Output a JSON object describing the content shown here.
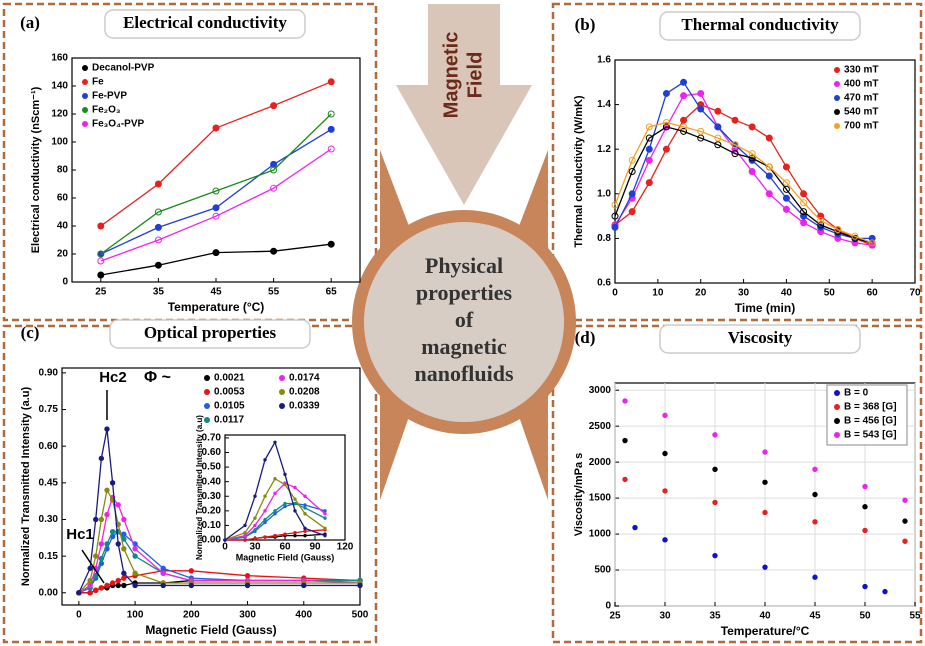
{
  "arrow": {
    "lines": [
      "Magnetic",
      "Field"
    ]
  },
  "center": {
    "lines": [
      "Physical",
      "properties",
      "of",
      "magnetic",
      "nanofluids"
    ]
  },
  "chart_data": [
    {
      "type": "line",
      "panel": "(a)",
      "title": "Electrical conductivity",
      "xlabel": "Temperature (°C)",
      "ylabel": "Electrical conductivity (nScm⁻¹)",
      "x": [
        25,
        35,
        45,
        55,
        65
      ],
      "xlim": [
        20,
        70
      ],
      "xticks": [
        25,
        35,
        45,
        55,
        65
      ],
      "ylim": [
        0,
        160
      ],
      "yticks": [
        0,
        20,
        40,
        60,
        80,
        100,
        120,
        140,
        160
      ],
      "legend": "upper left",
      "grid": false,
      "series": [
        {
          "name": "Decanol-PVP",
          "color": "#000000",
          "values": [
            5,
            12,
            21,
            22,
            27
          ]
        },
        {
          "name": "Fe",
          "color": "#e8211c",
          "values": [
            40,
            70,
            110,
            126,
            143
          ]
        },
        {
          "name": "Fe-PVP",
          "color": "#1f3fd8",
          "values": [
            20,
            39,
            53,
            84,
            109
          ]
        },
        {
          "name": "Fe₂O₃",
          "color": "#1a8a1a",
          "values": [
            20,
            50,
            65,
            80,
            120
          ]
        },
        {
          "name": "Fe₃O₄-PVP",
          "color": "#ee22ee",
          "values": [
            15,
            30,
            47,
            67,
            95
          ]
        }
      ]
    },
    {
      "type": "line",
      "panel": "(b)",
      "title": "Thermal conductivity",
      "xlabel": "Time (min)",
      "ylabel": "Thermal conductivity (W/mK)",
      "x": [
        0,
        4,
        8,
        12,
        16,
        20,
        24,
        28,
        32,
        36,
        40,
        44,
        48,
        52,
        56,
        60
      ],
      "xlim": [
        0,
        70
      ],
      "xticks": [
        0,
        10,
        20,
        30,
        40,
        50,
        60,
        70
      ],
      "ylim": [
        0.6,
        1.6
      ],
      "yticks": [
        0.6,
        0.8,
        {
          "value": 1,
          "label": "1.0"
        },
        1.2,
        1.4,
        1.6
      ],
      "legend": "upper right",
      "grid": false,
      "series": [
        {
          "name": "330 mT",
          "color": "#e8211c",
          "values": [
            0.86,
            0.92,
            1.05,
            1.2,
            1.33,
            1.4,
            1.37,
            1.33,
            1.3,
            1.25,
            1.12,
            1.0,
            0.9,
            0.84,
            0.8,
            0.77
          ]
        },
        {
          "name": "400 mT",
          "color": "#ee22ee",
          "values": [
            0.86,
            0.98,
            1.15,
            1.3,
            1.44,
            1.45,
            1.3,
            1.2,
            1.1,
            1.0,
            0.93,
            0.87,
            0.83,
            0.8,
            0.78,
            0.77
          ]
        },
        {
          "name": "470 mT",
          "color": "#1f3fd8",
          "values": [
            0.85,
            1.0,
            1.2,
            1.45,
            1.5,
            1.38,
            1.3,
            1.22,
            1.15,
            1.08,
            0.98,
            0.9,
            0.85,
            0.82,
            0.8,
            0.8
          ]
        },
        {
          "name": "540 mT",
          "color": "#000000",
          "values": [
            0.9,
            1.1,
            1.25,
            1.3,
            1.28,
            1.25,
            1.22,
            1.18,
            1.16,
            1.12,
            1.02,
            0.92,
            0.86,
            0.83,
            0.8,
            0.78
          ]
        },
        {
          "name": "700 mT",
          "color": "#f5a020",
          "values": [
            0.95,
            1.15,
            1.3,
            1.32,
            1.3,
            1.28,
            1.25,
            1.22,
            1.18,
            1.12,
            1.05,
            0.96,
            0.88,
            0.84,
            0.81,
            0.78
          ]
        }
      ]
    },
    {
      "type": "scatter",
      "panel": "(c)",
      "title": "Optical properties",
      "xlabel": "Magnetic Field (Gauss)",
      "ylabel": "Normalized Transmitted Intensity (a.u)",
      "x": [
        0,
        20,
        30,
        40,
        50,
        60,
        70,
        80,
        100,
        150,
        200,
        300,
        400,
        500
      ],
      "xlim": [
        -30,
        500
      ],
      "xticks": [
        0,
        100,
        200,
        300,
        400,
        500
      ],
      "ylim": [
        -0.05,
        0.92
      ],
      "yticks": [
        {
          "value": 0,
          "label": "0.00"
        },
        0.15,
        {
          "value": 0.3,
          "label": "0.30"
        },
        0.45,
        {
          "value": 0.6,
          "label": "0.60"
        },
        0.75,
        {
          "value": 0.9,
          "label": "0.90"
        }
      ],
      "legend": "upper right",
      "legend_title": "Φ ~",
      "grid": false,
      "annotations": [
        "Hc2",
        "Hc1"
      ],
      "series": [
        {
          "name": "0.0021",
          "color": "#000000",
          "values": [
            0,
            0,
            0.01,
            0.02,
            0.02,
            0.03,
            0.03,
            0.03,
            0.04,
            0.04,
            0.05,
            0.05,
            0.05,
            0.05
          ]
        },
        {
          "name": "0.0053",
          "color": "#ee1111",
          "values": [
            0,
            0,
            0.01,
            0.02,
            0.03,
            0.04,
            0.05,
            0.06,
            0.07,
            0.09,
            0.09,
            0.07,
            0.06,
            0.05
          ]
        },
        {
          "name": "0.0105",
          "color": "#1f5fe8",
          "values": [
            0,
            0.02,
            0.06,
            0.12,
            0.18,
            0.23,
            0.25,
            0.24,
            0.2,
            0.1,
            0.06,
            0.05,
            0.05,
            0.05
          ]
        },
        {
          "name": "0.0117",
          "color": "#108a8a",
          "values": [
            0,
            0.02,
            0.07,
            0.14,
            0.2,
            0.25,
            0.25,
            0.22,
            0.15,
            0.08,
            0.05,
            0.05,
            0.05,
            0.05
          ]
        },
        {
          "name": "0.0174",
          "color": "#ee22ee",
          "values": [
            0,
            0.03,
            0.1,
            0.2,
            0.32,
            0.39,
            0.36,
            0.3,
            0.18,
            0.08,
            0.05,
            0.05,
            0.05,
            0.04
          ]
        },
        {
          "name": "0.0208",
          "color": "#8a8a10",
          "values": [
            0,
            0.05,
            0.15,
            0.3,
            0.42,
            0.38,
            0.28,
            0.18,
            0.08,
            0.04,
            0.04,
            0.04,
            0.04,
            0.04
          ]
        },
        {
          "name": "0.0339",
          "color": "#1a1a80",
          "values": [
            0,
            0.1,
            0.3,
            0.55,
            0.67,
            0.45,
            0.2,
            0.08,
            0.03,
            0.03,
            0.03,
            0.03,
            0.03,
            0.03
          ]
        }
      ],
      "inset": {
        "xlabel": "Magnetic Field (Gauss)",
        "ylabel": "Normalized Transmitted Intensity (a.u)",
        "xlim": [
          0,
          120
        ],
        "xticks": [
          0,
          30,
          60,
          90,
          120
        ],
        "ylim": [
          0,
          0.72
        ],
        "yticks": [
          {
            "value": 0,
            "label": "0.00"
          },
          {
            "value": 0.1,
            "label": "0.10"
          },
          {
            "value": 0.2,
            "label": "0.20"
          },
          {
            "value": 0.3,
            "label": "0.30"
          },
          {
            "value": 0.4,
            "label": "0.40"
          },
          {
            "value": 0.5,
            "label": "0.50"
          },
          {
            "value": 0.6,
            "label": "0.60"
          },
          {
            "value": 0.7,
            "label": "0.70"
          }
        ]
      }
    },
    {
      "type": "scatter",
      "panel": "(d)",
      "title": "Viscosity",
      "xlabel": "Temperature/°C",
      "ylabel": "Viscosity/mPa s",
      "xlim": [
        25,
        55
      ],
      "xticks": [
        25,
        30,
        35,
        40,
        45,
        50,
        55
      ],
      "ylim": [
        0,
        3100
      ],
      "yticks": [
        0,
        500,
        1000,
        1500,
        2000,
        2500,
        3000
      ],
      "legend": "upper right",
      "grid": true,
      "series": [
        {
          "name": "B = 0",
          "color": "#1010d0",
          "x": [
            27,
            30,
            35,
            40,
            45,
            50,
            52
          ],
          "values": [
            1090,
            920,
            700,
            540,
            400,
            270,
            200
          ]
        },
        {
          "name": "B = 368 [G]",
          "color": "#e82020",
          "x": [
            26,
            30,
            35,
            40,
            45,
            50,
            54
          ],
          "values": [
            1760,
            1600,
            1440,
            1300,
            1170,
            1050,
            900
          ]
        },
        {
          "name": "B = 456 [G]",
          "color": "#000000",
          "x": [
            26,
            30,
            35,
            40,
            45,
            50,
            54
          ],
          "values": [
            2300,
            2120,
            1900,
            1720,
            1550,
            1380,
            1180
          ]
        },
        {
          "name": "B = 543 [G]",
          "color": "#ee22ee",
          "x": [
            26,
            30,
            35,
            40,
            45,
            50,
            54
          ],
          "values": [
            2850,
            2650,
            2380,
            2140,
            1900,
            1660,
            1470
          ]
        }
      ]
    }
  ]
}
